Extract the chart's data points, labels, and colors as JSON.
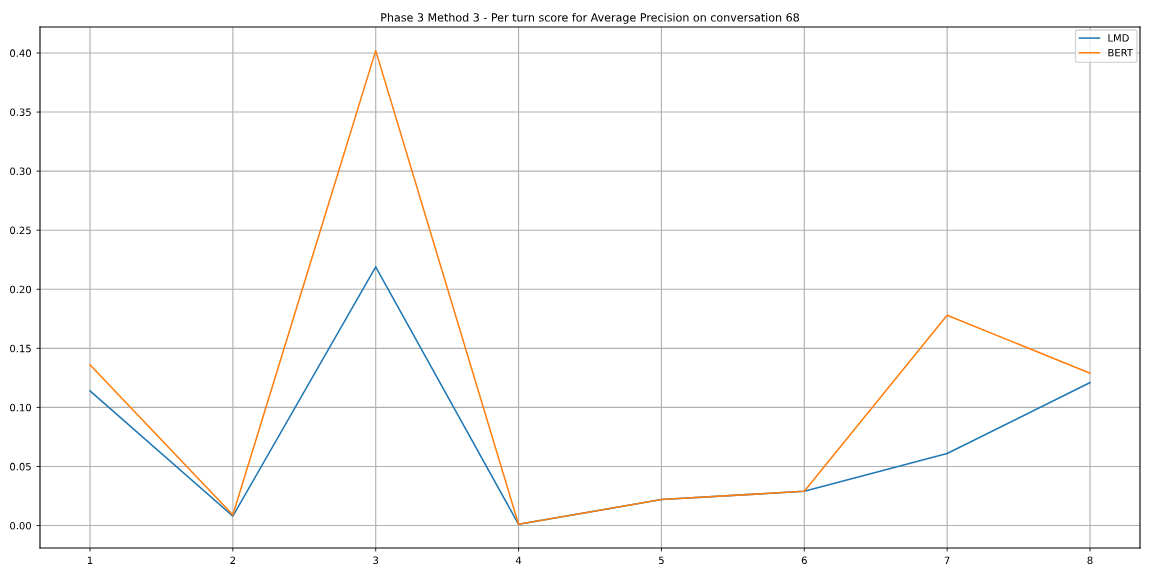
{
  "chart_data": {
    "type": "line",
    "title": "Phase 3 Method 3 - Per turn score for Average Precision on conversation 68",
    "x": [
      1,
      2,
      3,
      4,
      5,
      6,
      7,
      8
    ],
    "series": [
      {
        "name": "LMD",
        "color": "#1f77b4",
        "values": [
          0.114,
          0.008,
          0.219,
          0.001,
          0.022,
          0.029,
          0.061,
          0.121
        ]
      },
      {
        "name": "BERT",
        "color": "#ff7f0e",
        "values": [
          0.136,
          0.009,
          0.402,
          0.001,
          0.022,
          0.029,
          0.178,
          0.129
        ]
      }
    ],
    "xlim": [
      0.65,
      8.35
    ],
    "xticks": [
      1,
      2,
      3,
      4,
      5,
      6,
      7,
      8
    ],
    "ylim": [
      -0.019,
      0.422
    ],
    "yticks": [
      {
        "value": 0.0,
        "label": "0.00"
      },
      {
        "value": 0.05,
        "label": "0.05"
      },
      {
        "value": 0.1,
        "label": "0.10"
      },
      {
        "value": 0.15,
        "label": "0.15"
      },
      {
        "value": 0.2,
        "label": "0.20"
      },
      {
        "value": 0.25,
        "label": "0.25"
      },
      {
        "value": 0.3,
        "label": "0.30"
      },
      {
        "value": 0.35,
        "label": "0.35"
      },
      {
        "value": 0.4,
        "label": "0.40"
      }
    ],
    "grid": true,
    "legend": "top right",
    "marker": "none",
    "line_style": "solid"
  }
}
